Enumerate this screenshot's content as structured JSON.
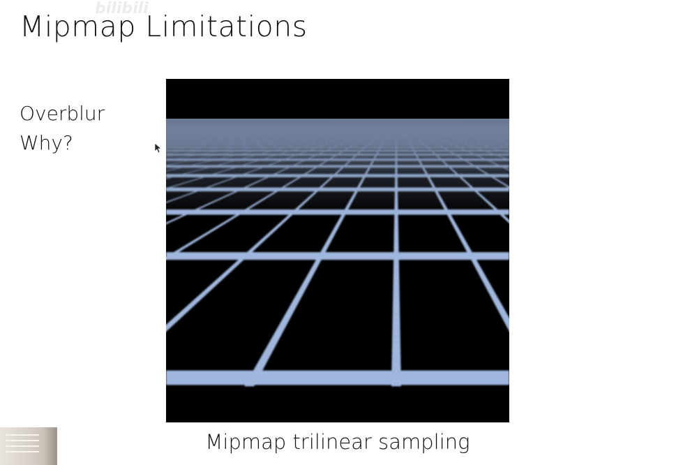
{
  "slide": {
    "title": "Mipmap Limitations",
    "bullets": [
      "Overblur",
      "Why?"
    ],
    "caption": "Mipmap trilinear sampling"
  },
  "figure": {
    "sky_color": "#000000",
    "horizon_haze_color": "#6b7a94",
    "grid_line_color": "#9fb6dd",
    "tile_color": "#000000"
  },
  "overlay": {
    "watermark_icon": "bilibili-logo-icon",
    "cursor_icon": "mouse-pointer-icon",
    "webcam_thumbnail": "presenter-thumbnail"
  }
}
